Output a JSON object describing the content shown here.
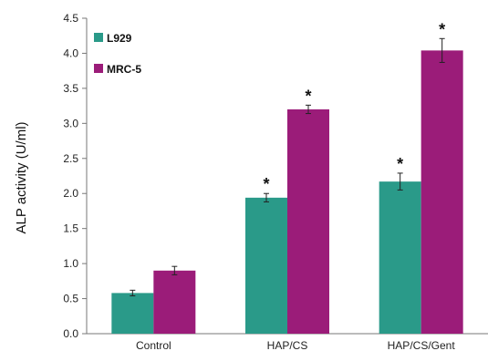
{
  "chart_data": {
    "type": "bar",
    "categories": [
      "Control",
      "HAP/CS",
      "HAP/CS/Gent"
    ],
    "series": [
      {
        "name": "L929",
        "color": "#2a9a89",
        "values": [
          0.58,
          1.94,
          2.17
        ],
        "errors": [
          0.04,
          0.06,
          0.12
        ],
        "significance": [
          "",
          "*",
          "*"
        ]
      },
      {
        "name": "MRC-5",
        "color": "#9b1c79",
        "values": [
          0.9,
          3.2,
          4.04
        ],
        "errors": [
          0.06,
          0.06,
          0.17
        ],
        "significance": [
          "",
          "*",
          "*"
        ]
      }
    ],
    "xlabel": "",
    "ylabel": "ALP activity (U/ml)",
    "ylim": [
      0,
      4.5
    ],
    "yticks": [
      "0.0",
      "0.5",
      "1.0",
      "1.5",
      "2.0",
      "2.5",
      "3.0",
      "3.5",
      "4.0",
      "4.5"
    ],
    "grid": false,
    "legend_position": "top-left"
  }
}
